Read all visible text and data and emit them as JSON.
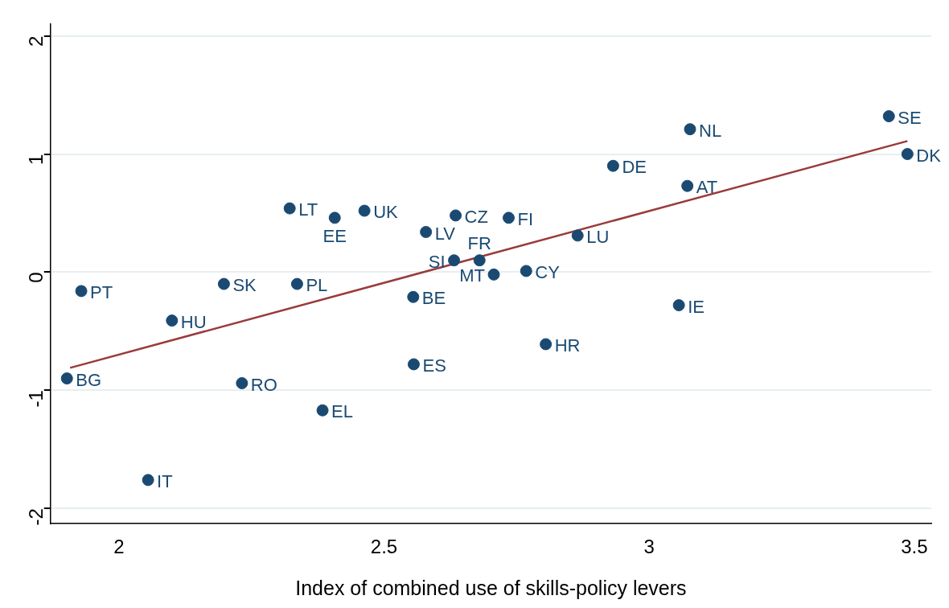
{
  "chart_data": {
    "type": "scatter",
    "xlabel": "Index of combined use of skills-policy levers",
    "xlim": [
      1.871,
      3.532
    ],
    "xticks": [
      2,
      2.5,
      3,
      3.5
    ],
    "ylim": [
      -2.13,
      2.1
    ],
    "yticks": [
      -2,
      -1,
      0,
      1,
      2
    ],
    "grid": "y",
    "legend": false,
    "marker": "circle",
    "series": [
      {
        "color": "#1a4a72",
        "x": [
          3.452,
          3.077,
          3.487,
          2.932,
          3.072,
          2.322,
          2.407,
          2.463,
          2.635,
          2.735,
          2.579,
          2.865,
          2.632,
          2.68,
          2.707,
          2.768,
          1.929,
          2.198,
          2.336,
          2.555,
          3.056,
          2.1,
          2.805,
          2.556,
          1.902,
          2.232,
          2.384,
          2.055
        ],
        "values": [
          1.32,
          1.21,
          1.0,
          0.9,
          0.73,
          0.54,
          0.46,
          0.52,
          0.48,
          0.46,
          0.34,
          0.31,
          0.1,
          0.1,
          -0.02,
          0.01,
          -0.16,
          -0.1,
          -0.1,
          -0.21,
          -0.28,
          -0.41,
          -0.61,
          -0.78,
          -0.9,
          -0.94,
          -1.17,
          -1.76
        ],
        "value_labels": [
          "SE",
          "NL",
          "DK",
          "DE",
          "AT",
          "LT",
          "EE",
          "UK",
          "CZ",
          "FI",
          "LV",
          "LU",
          "SI",
          "FR",
          "MT",
          "CY",
          "PT",
          "SK",
          "PL",
          "BE",
          "IE",
          "HU",
          "HR",
          "ES",
          "BG",
          "RO",
          "EL",
          "IT"
        ]
      },
      {
        "type": "line",
        "marker": "none",
        "color": "#9b3a3a",
        "x": [
          1.908,
          3.487
        ],
        "values": [
          -0.81,
          1.11
        ]
      }
    ]
  }
}
